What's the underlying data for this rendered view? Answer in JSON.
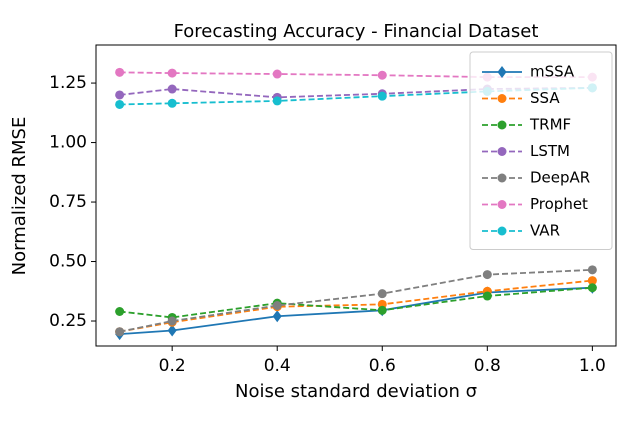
{
  "chart_data": {
    "type": "line",
    "title": "Forecasting Accuracy - Financial Dataset",
    "x_label": "Noise standard deviation σ",
    "y_label": "Normalized RMSE",
    "x": [
      0.1,
      0.2,
      0.4,
      0.6,
      0.8,
      1.0
    ],
    "xlim": [
      0.055,
      1.045
    ],
    "ylim": [
      0.145,
      1.41
    ],
    "xticks": [
      0.2,
      0.4,
      0.6,
      0.8,
      {
        "value": 1.0,
        "label": "1.0"
      }
    ],
    "yticks": [
      0.25,
      {
        "value": 0.5,
        "label": "0.50"
      },
      0.75,
      {
        "value": 1.0,
        "label": "1.00"
      },
      1.25
    ],
    "legend": "upper right",
    "series": [
      {
        "name": "mSSA",
        "color": "#1f77b4",
        "linestyle": "solid",
        "marker": "diamond",
        "values": [
          0.195,
          0.21,
          0.27,
          0.295,
          0.37,
          0.39
        ]
      },
      {
        "name": "SSA",
        "color": "#ff7f0e",
        "linestyle": "dashed",
        "marker": "circle",
        "values": [
          0.205,
          0.245,
          0.31,
          0.32,
          0.375,
          0.42
        ]
      },
      {
        "name": "TRMF",
        "color": "#2ca02c",
        "linestyle": "dashed",
        "marker": "circle",
        "values": [
          0.29,
          0.265,
          0.325,
          0.295,
          0.355,
          0.39
        ]
      },
      {
        "name": "LSTM",
        "color": "#9467bd",
        "linestyle": "dashed",
        "marker": "circle",
        "values": [
          1.2,
          1.225,
          1.19,
          1.205,
          1.225,
          1.23
        ]
      },
      {
        "name": "DeepAR",
        "color": "#7f7f7f",
        "linestyle": "dashed",
        "marker": "circle",
        "values": [
          0.205,
          0.25,
          0.315,
          0.365,
          0.445,
          0.465
        ]
      },
      {
        "name": "Prophet",
        "color": "#e377c2",
        "linestyle": "dashed",
        "marker": "circle",
        "values": [
          1.295,
          1.292,
          1.288,
          1.283,
          1.275,
          1.275
        ]
      },
      {
        "name": "VAR",
        "color": "#17becf",
        "linestyle": "dashed",
        "marker": "circle",
        "values": [
          1.16,
          1.165,
          1.175,
          1.195,
          1.215,
          1.23
        ]
      }
    ]
  }
}
